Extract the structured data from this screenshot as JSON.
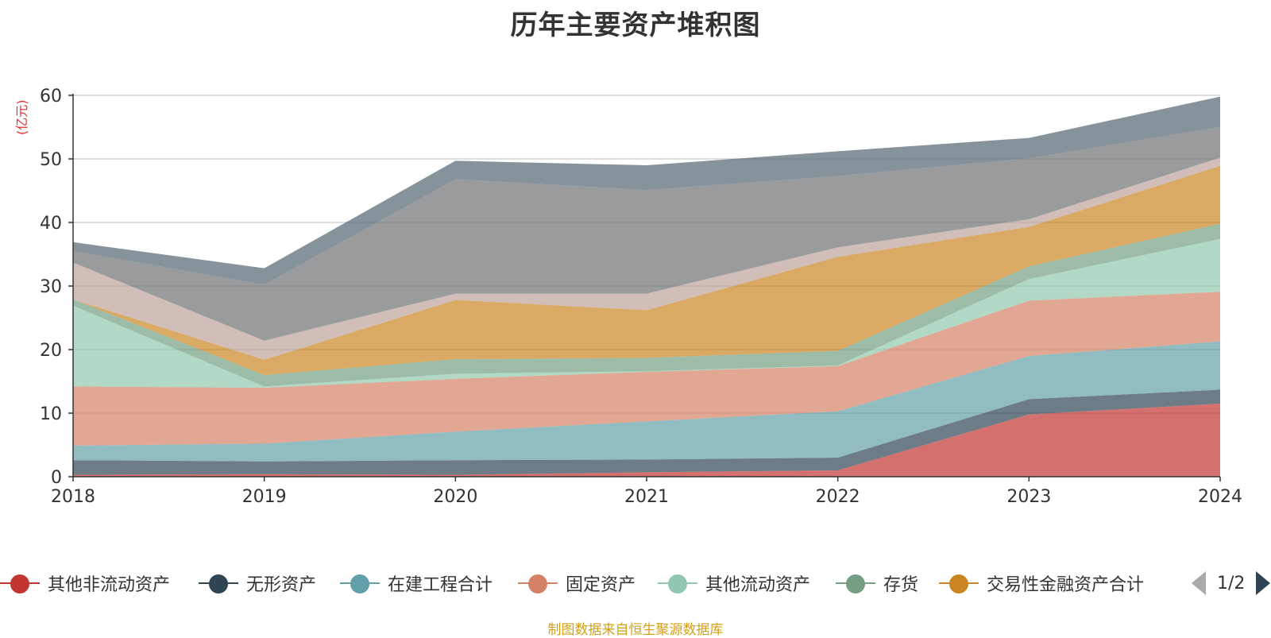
{
  "chart_data": {
    "type": "area",
    "stacked": true,
    "title": "历年主要资产堆积图",
    "ylabel": "(亿元)",
    "ylim": [
      0,
      60
    ],
    "yticks": [
      0,
      10,
      20,
      30,
      40,
      50,
      60
    ],
    "grid": true,
    "x": [
      "2018",
      "2019",
      "2020",
      "2021",
      "2022",
      "2023",
      "2024"
    ],
    "series": [
      {
        "name": "其他非流动资产",
        "color": "#c23531",
        "values": [
          0.3,
          0.4,
          0.3,
          0.7,
          1.0,
          9.8,
          11.5
        ]
      },
      {
        "name": "无形资产",
        "color": "#2f4554",
        "values": [
          2.3,
          2.0,
          2.3,
          2.0,
          2.0,
          2.4,
          2.2
        ]
      },
      {
        "name": "在建工程合计",
        "color": "#61a0a8",
        "values": [
          2.3,
          2.8,
          4.5,
          6.0,
          7.3,
          6.8,
          7.6
        ]
      },
      {
        "name": "固定资产",
        "color": "#d48265",
        "values": [
          9.3,
          8.8,
          8.3,
          7.8,
          7.1,
          8.7,
          7.8
        ]
      },
      {
        "name": "其他流动资产",
        "color": "#91c7ae",
        "values": [
          12.7,
          0.2,
          0.8,
          0.1,
          0.1,
          3.4,
          8.3
        ]
      },
      {
        "name": "存货",
        "color": "#749f83",
        "values": [
          1.0,
          1.8,
          2.3,
          2.1,
          2.3,
          2.0,
          2.4
        ]
      },
      {
        "name": "交易性金融资产合计",
        "color": "#ca8622",
        "values": [
          0.0,
          2.4,
          9.3,
          7.5,
          14.8,
          6.2,
          9.1
        ]
      },
      {
        "name": "",
        "color": "#bda29a",
        "values": [
          5.8,
          3.0,
          1.0,
          2.6,
          1.5,
          1.2,
          1.3
        ]
      },
      {
        "name": "",
        "color": "#6e7074",
        "values": [
          1.8,
          8.8,
          18.0,
          16.3,
          11.2,
          9.6,
          4.8
        ]
      },
      {
        "name": "",
        "color": "#546570",
        "values": [
          1.4,
          2.6,
          2.9,
          3.9,
          3.9,
          3.2,
          4.8
        ]
      }
    ]
  },
  "legend": {
    "items": [
      {
        "label": "其他非流动资产",
        "color": "#c23531"
      },
      {
        "label": "无形资产",
        "color": "#2f4554"
      },
      {
        "label": "在建工程合计",
        "color": "#61a0a8"
      },
      {
        "label": "固定资产",
        "color": "#d48265"
      },
      {
        "label": "其他流动资产",
        "color": "#91c7ae"
      },
      {
        "label": "存货",
        "color": "#749f83"
      },
      {
        "label": "交易性金融资产合计",
        "color": "#ca8622"
      }
    ],
    "page_indicator": "1/2"
  },
  "footer": "制图数据来自恒生聚源数据库"
}
